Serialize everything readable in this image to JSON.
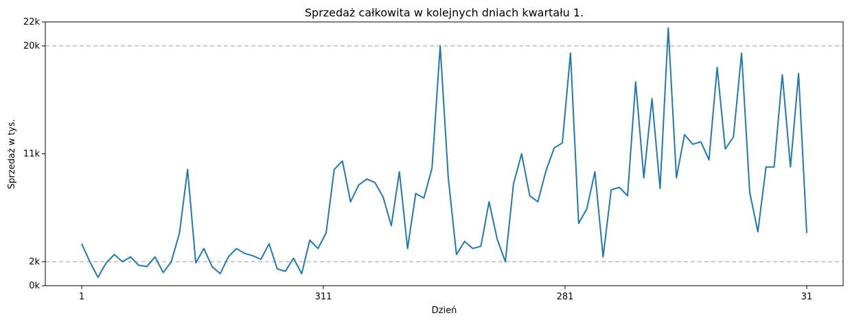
{
  "chart_data": {
    "type": "line",
    "title": "Sprzedaż całkowita w kolejnych dniach kwartału 1.",
    "xlabel": "Dzień",
    "ylabel": "Sprzedaż w tys.",
    "x_tick_labels": [
      "1",
      "311",
      "281",
      "31"
    ],
    "y_ticks": [
      {
        "value": 0,
        "label": "0k"
      },
      {
        "value": 2,
        "label": "2k"
      },
      {
        "value": 11,
        "label": "11k"
      },
      {
        "value": 20,
        "label": "20k"
      },
      {
        "value": 22,
        "label": "22k"
      }
    ],
    "ylim": [
      0,
      22
    ],
    "reference_lines": [
      2,
      20
    ],
    "grid": false,
    "colors": {
      "line": "#1f77b4",
      "reference": "#bbbbbb"
    },
    "series": [
      {
        "values": [
          3.5,
          2.0,
          0.7,
          1.9,
          2.6,
          2.0,
          2.4,
          1.7,
          1.6,
          2.4,
          1.1,
          2.0,
          4.4,
          9.7,
          1.9,
          3.1,
          1.6,
          1.0,
          2.4,
          3.1,
          2.7,
          2.5,
          2.2,
          3.5,
          1.4,
          1.2,
          2.3,
          1.0,
          3.8,
          3.1,
          4.4,
          9.7,
          10.4,
          7.0,
          8.4,
          8.9,
          8.6,
          7.4,
          5.0,
          9.5,
          3.1,
          7.7,
          7.3,
          9.8,
          20.0,
          9.0,
          2.6,
          3.7,
          3.1,
          3.3,
          7.0,
          3.9,
          2.0,
          8.5,
          11.0,
          7.5,
          7.0,
          9.6,
          11.5,
          11.9,
          19.4,
          5.2,
          6.4,
          9.5,
          2.4,
          8.0,
          8.2,
          7.5,
          17.0,
          9.0,
          15.6,
          8.1,
          21.5,
          9.0,
          12.6,
          11.8,
          12.0,
          10.5,
          18.2,
          11.4,
          12.4,
          19.4,
          7.8,
          4.5,
          9.9,
          9.9,
          17.6,
          9.9,
          17.7,
          4.4
        ]
      }
    ]
  }
}
